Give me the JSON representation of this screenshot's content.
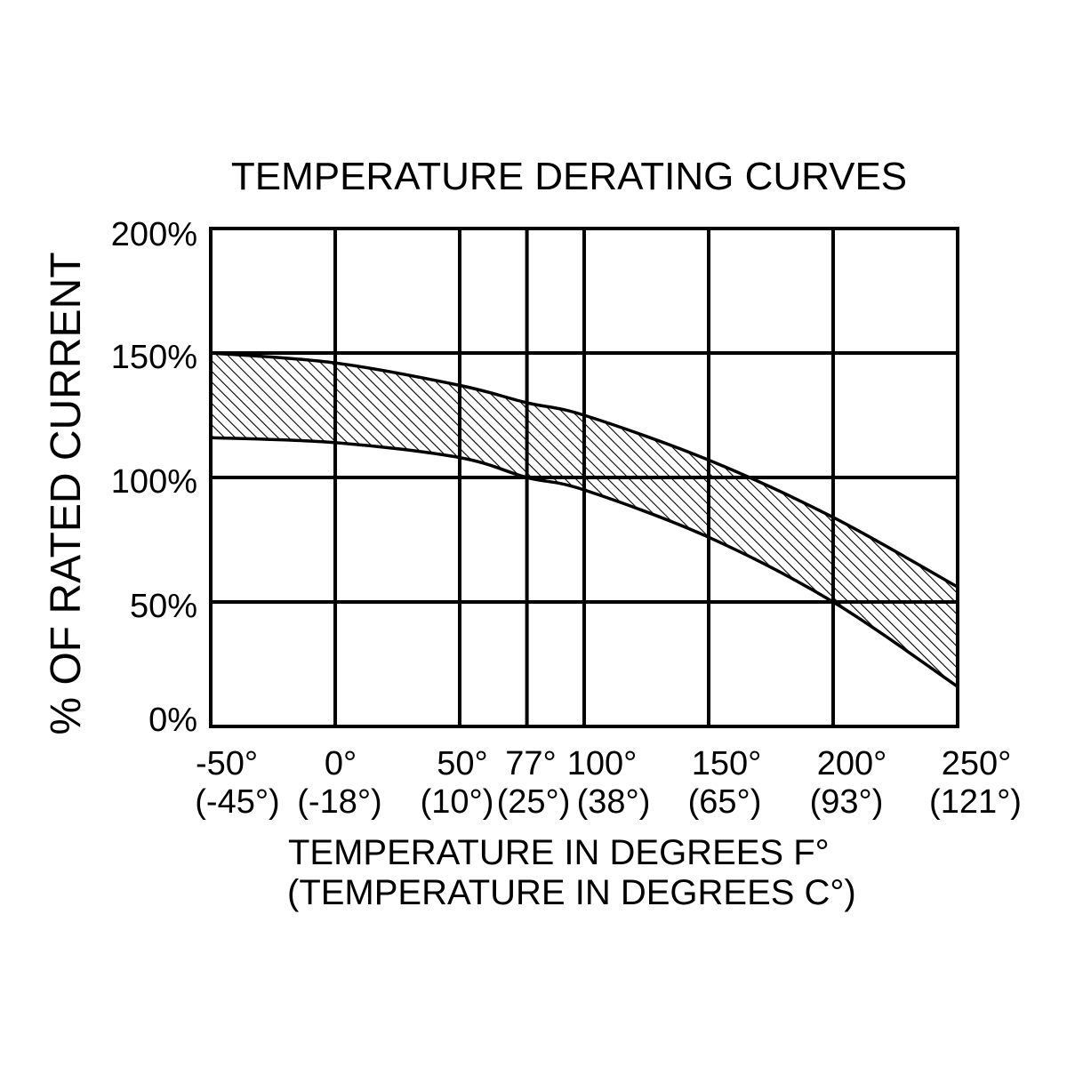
{
  "chart_data": {
    "type": "area",
    "title": "TEMPERATURE DERATING CURVES",
    "xlabel": "TEMPERATURE IN DEGREES F°",
    "xlabel_secondary": "(TEMPERATURE IN DEGREES C°)",
    "ylabel": "% OF RATED CURRENT",
    "xlim": [
      -50,
      250
    ],
    "ylim": [
      0,
      200
    ],
    "x": [
      -50,
      0,
      50,
      77,
      100,
      150,
      200,
      250
    ],
    "x_ticks": [
      -50,
      0,
      50,
      77,
      100,
      150,
      200,
      250
    ],
    "x_tick_labels": [
      "-50°",
      "0°",
      "50°",
      "77°",
      "100°",
      "150°",
      "200°",
      "250°"
    ],
    "x_tick_labels_secondary": [
      "(-45°)",
      "(-18°)",
      "(10°)",
      "(25°)",
      "(38°)",
      "(65°)",
      "(93°)",
      "(121°)"
    ],
    "y_ticks": [
      0,
      50,
      100,
      150,
      200
    ],
    "y_tick_labels": [
      "0%",
      "50%",
      "100%",
      "150%",
      "200%"
    ],
    "series": [
      {
        "values": [
          150,
          146,
          137,
          130,
          125,
          107,
          84,
          56
        ]
      },
      {
        "values": [
          116,
          114,
          108,
          100,
          95,
          76,
          50,
          16
        ]
      }
    ],
    "grid": true,
    "color": "#000000",
    "background": "#ffffff"
  }
}
